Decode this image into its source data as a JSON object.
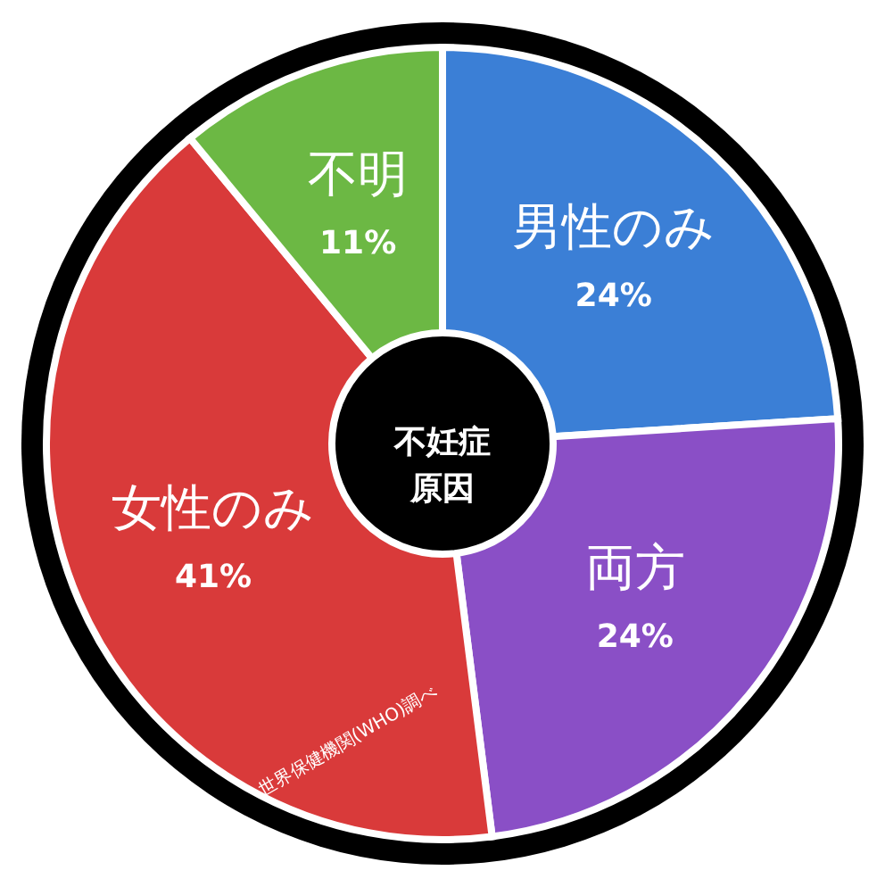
{
  "chart_data": {
    "type": "donut",
    "title": "不妊症原因",
    "categories": [
      "男性のみ",
      "両方",
      "女性のみ",
      "不明"
    ],
    "values": [
      24,
      24,
      41,
      11
    ],
    "colors": [
      "#3b7fd6",
      "#8a4fc6",
      "#d93a3a",
      "#6cb844"
    ],
    "value_labels": [
      "24%",
      "24%",
      "41%",
      "11%"
    ],
    "annotations": [
      "世界保健機関(WHO)調べ"
    ]
  }
}
